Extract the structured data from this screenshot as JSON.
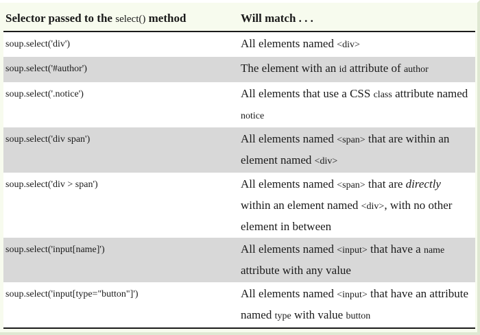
{
  "table": {
    "header": {
      "col1": {
        "prefix": "Selector passed to the ",
        "code": "select()",
        "suffix": " method"
      },
      "col2": "Will match . . ."
    },
    "rows": [
      {
        "selector": "soup.select('div')",
        "match": [
          {
            "t": "All elements named "
          },
          {
            "t": "<div>",
            "mono": true
          }
        ]
      },
      {
        "selector": "soup.select('#author')",
        "match": [
          {
            "t": "The element with an "
          },
          {
            "t": "id",
            "mono": true
          },
          {
            "t": " attribute of "
          },
          {
            "t": "author",
            "mono": true
          }
        ]
      },
      {
        "selector": "soup.select('.notice')",
        "match": [
          {
            "t": "All elements that use a CSS "
          },
          {
            "t": "class",
            "mono": true
          },
          {
            "t": " attribute named "
          },
          {
            "t": "notice",
            "mono": true
          }
        ]
      },
      {
        "selector": "soup.select('div span')",
        "match": [
          {
            "t": "All elements named "
          },
          {
            "t": "<span>",
            "mono": true
          },
          {
            "t": " that are within an element named "
          },
          {
            "t": "<div>",
            "mono": true
          }
        ]
      },
      {
        "selector": "soup.select('div > span')",
        "match": [
          {
            "t": "All elements named "
          },
          {
            "t": "<span>",
            "mono": true
          },
          {
            "t": " that are "
          },
          {
            "t": "directly",
            "italic": true
          },
          {
            "t": " within an element named "
          },
          {
            "t": "<div>",
            "mono": true
          },
          {
            "t": ", with no other element in between"
          }
        ]
      },
      {
        "selector": "soup.select('input[name]')",
        "match": [
          {
            "t": "All elements named "
          },
          {
            "t": "<input>",
            "mono": true
          },
          {
            "t": " that have a "
          },
          {
            "t": "name",
            "mono": true
          },
          {
            "t": " attribute with any value"
          }
        ]
      },
      {
        "selector": "soup.select('input[type=\"button\"]')",
        "match": [
          {
            "t": "All elements named "
          },
          {
            "t": "<input>",
            "mono": true
          },
          {
            "t": " that have an attribute named "
          },
          {
            "t": "type",
            "mono": true
          },
          {
            "t": " with value "
          },
          {
            "t": "button",
            "mono": true
          }
        ]
      }
    ]
  }
}
